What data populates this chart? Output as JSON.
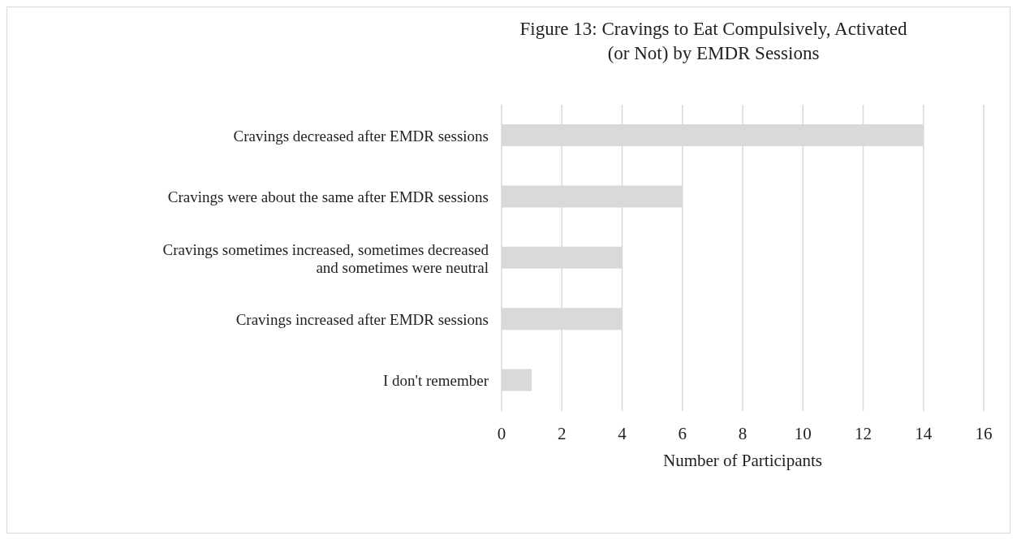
{
  "chart_data": {
    "type": "bar",
    "orientation": "horizontal",
    "title": "Figure 13: Cravings to Eat Compulsively, Activated (or Not) by EMDR Sessions",
    "xlabel": "Number of Participants",
    "categories": [
      "Cravings decreased after EMDR sessions",
      "Cravings were about the same after EMDR sessions",
      "Cravings sometimes increased, sometimes decreased and sometimes were neutral",
      "Cravings increased after EMDR sessions",
      "I don't remember"
    ],
    "values": [
      14,
      6,
      4,
      4,
      1
    ],
    "color": "#d9d9d9",
    "xlim": [
      0,
      16
    ],
    "xticks": [
      0,
      2,
      4,
      6,
      8,
      10,
      12,
      14,
      16
    ],
    "grid": "x"
  }
}
